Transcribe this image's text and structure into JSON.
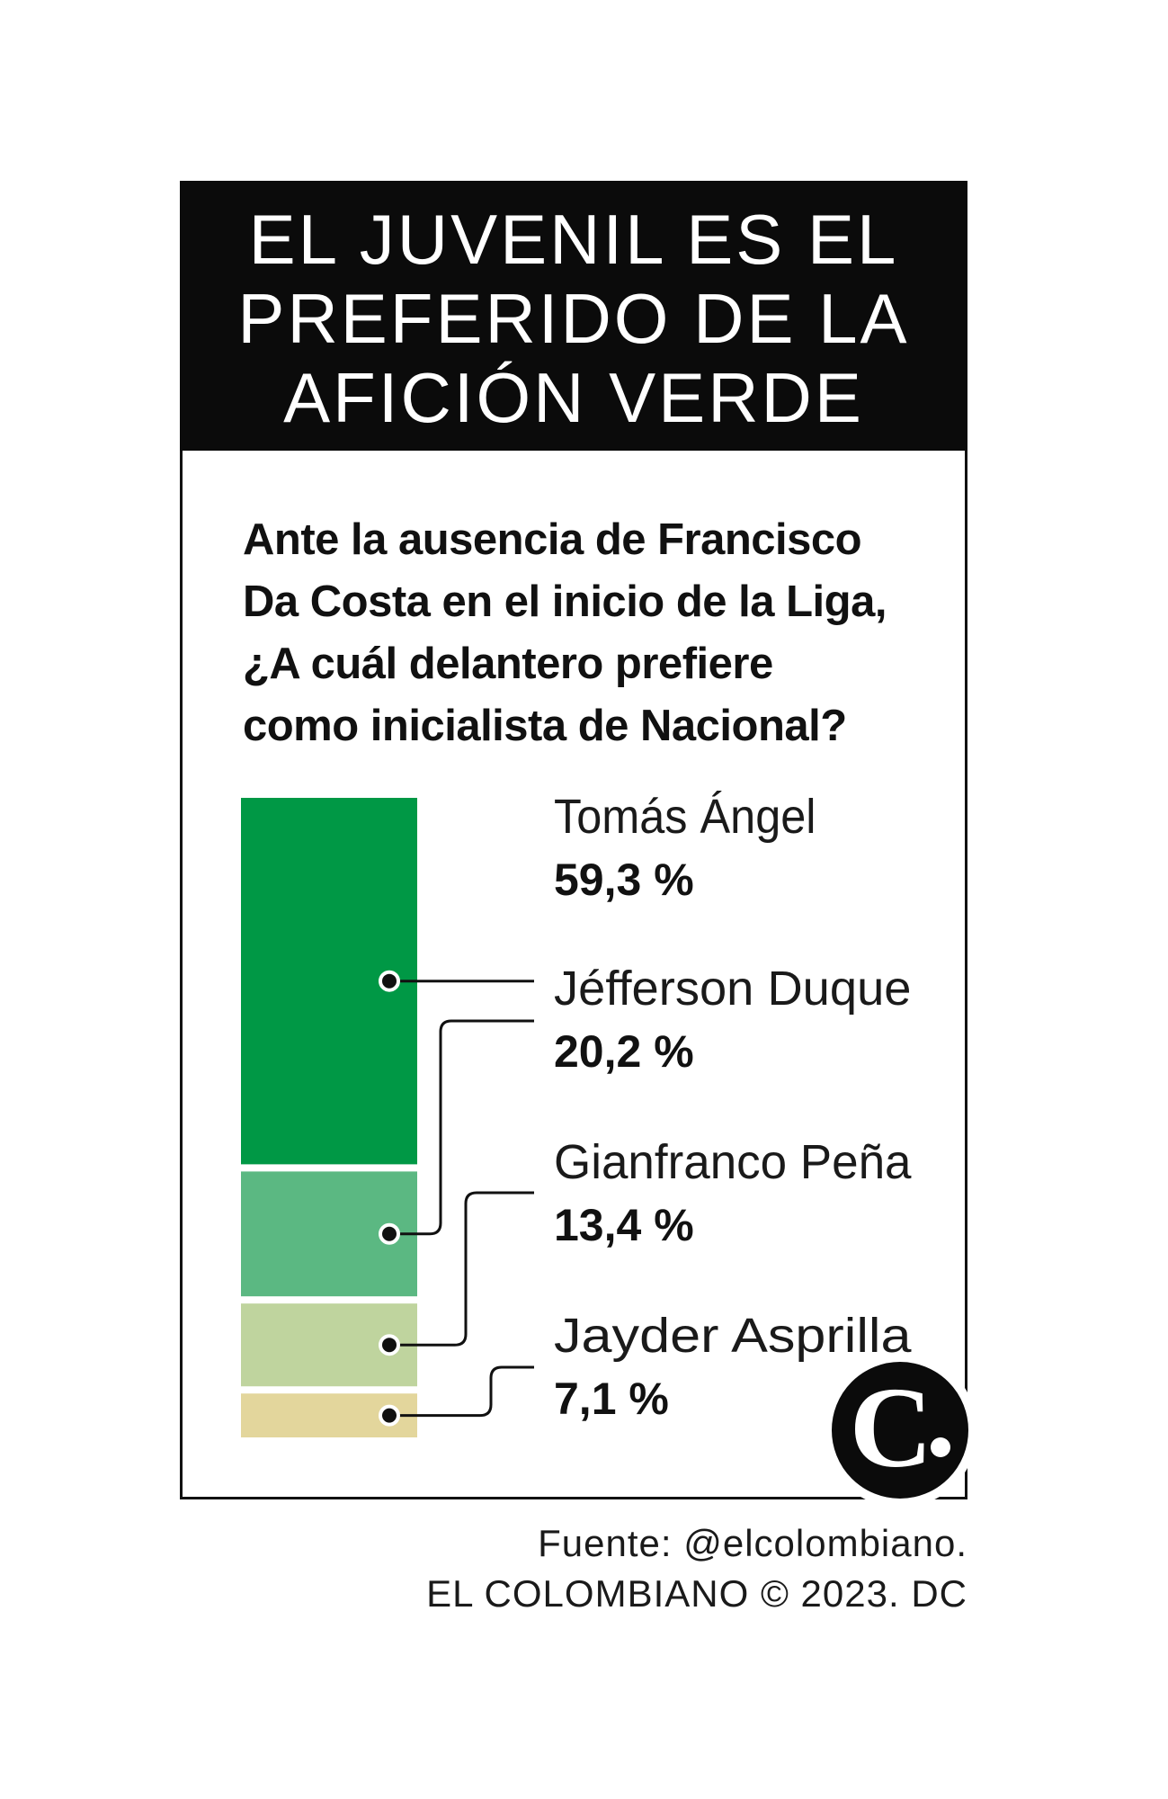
{
  "header": {
    "title_lines": [
      "EL JUVENIL ES EL",
      "PREFERIDO DE LA",
      "AFICIÓN VERDE"
    ]
  },
  "question": {
    "lines": [
      "Ante la ausencia de Francisco",
      "Da Costa en el inicio de la Liga,",
      "¿A cuál delantero prefiere",
      "como inicialista de Nacional?"
    ]
  },
  "chart_data": {
    "type": "bar",
    "subtype": "stacked-100",
    "title": "EL JUVENIL ES EL PREFERIDO DE LA AFICIÓN VERDE",
    "categories": [
      "Tomás Ángel",
      "Jéfferson Duque",
      "Gianfranco Peña",
      "Jayder Asprilla"
    ],
    "values": [
      59.3,
      20.2,
      13.4,
      7.1
    ],
    "value_labels": [
      "59,3 %",
      "20,2 %",
      "13,4 %",
      "7,1 %"
    ],
    "colors": [
      "#009845",
      "#5bb882",
      "#bfd49e",
      "#e3d69c"
    ],
    "xlabel": "",
    "ylabel": "",
    "ylim": [
      0,
      100
    ],
    "legend": "right"
  },
  "logo": {
    "letter": "C"
  },
  "footer": {
    "source": "Fuente: @elcolombiano.",
    "credit": "EL COLOMBIANO © 2023. DC"
  }
}
